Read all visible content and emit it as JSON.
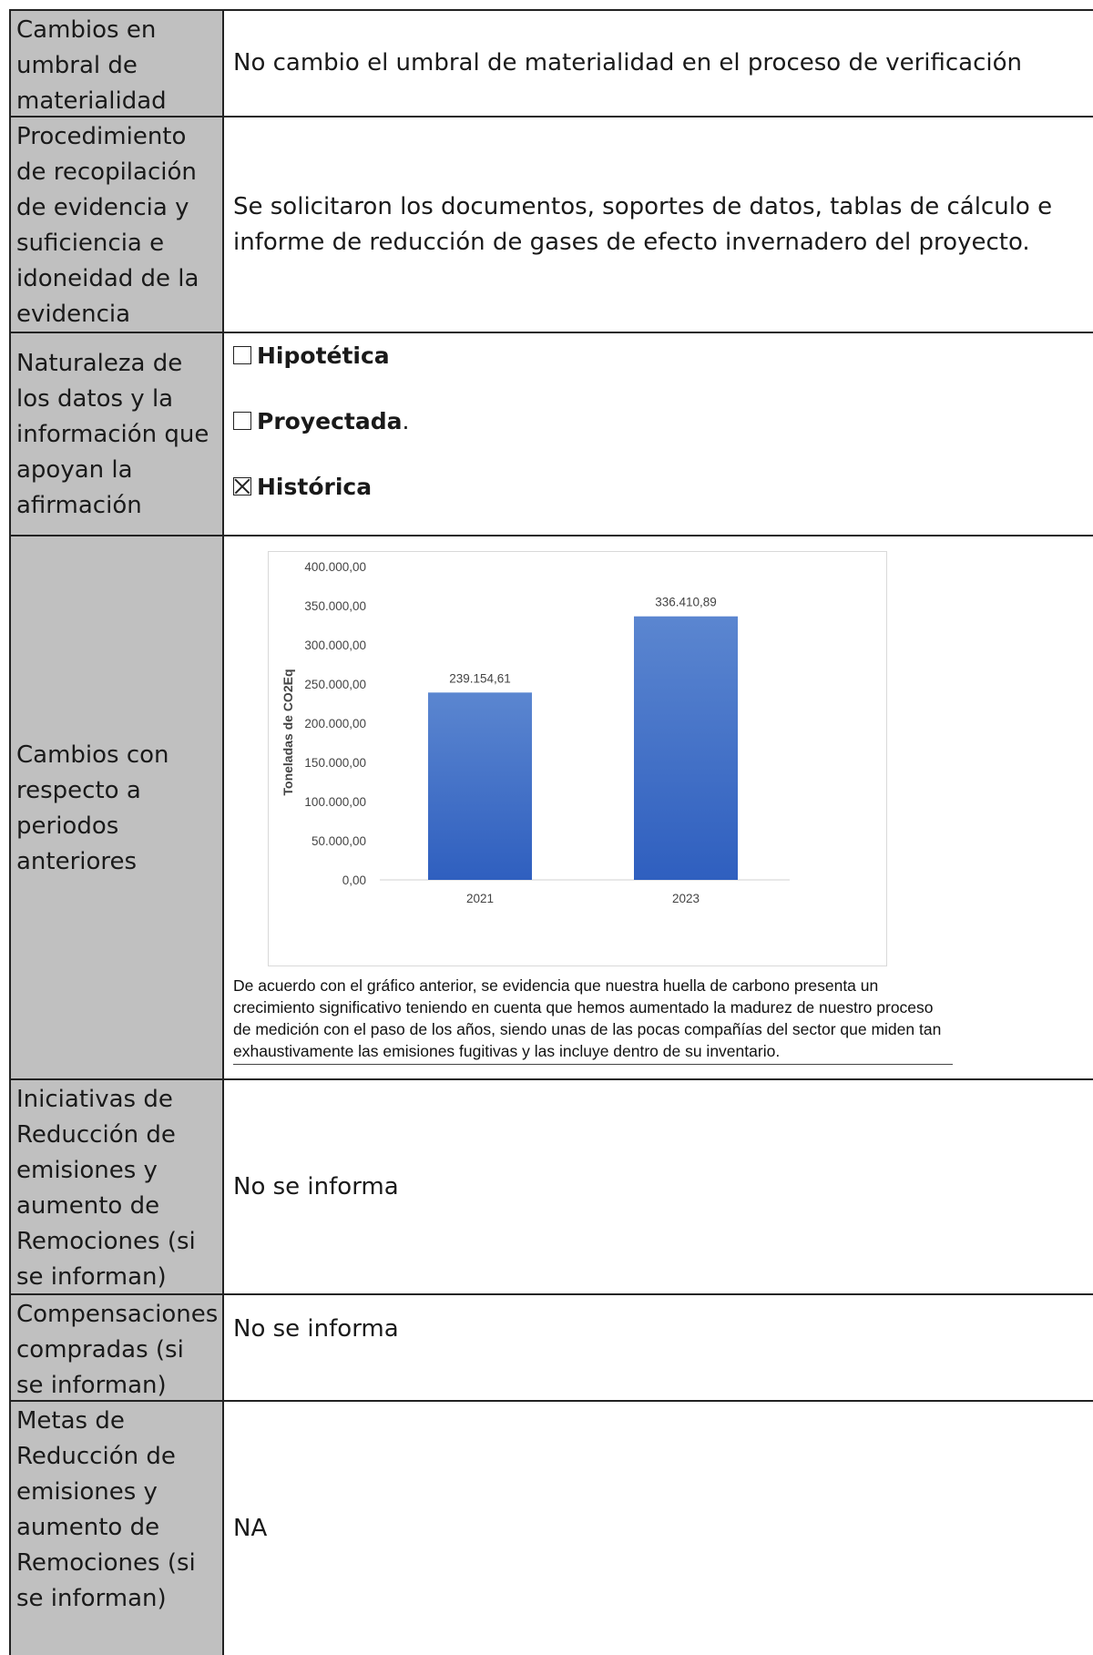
{
  "rows": [
    {
      "label": "Cambios en umbral de materialidad",
      "value": "No cambio el umbral de materialidad en el proceso de verificación"
    },
    {
      "label": "Procedimiento de recopilación de evidencia y suficiencia e idoneidad de la evidencia recopilada",
      "value": "Se solicitaron los documentos, soportes de datos, tablas de cálculo e informe de reducción de gases de efecto invernadero del proyecto."
    },
    {
      "label": "Naturaleza de los datos y la información que apoyan la afirmación",
      "options": [
        {
          "label": "Hipotética",
          "checked": false,
          "suffix": ""
        },
        {
          "label": "Proyectada",
          "checked": false,
          "suffix": "."
        },
        {
          "label": "Histórica",
          "checked": true,
          "suffix": ""
        }
      ]
    },
    {
      "label": "Cambios con respecto a periodos anteriores",
      "caption": "De acuerdo con el gráfico anterior, se evidencia que nuestra huella de carbono presenta un crecimiento significativo teniendo en cuenta que hemos aumentado la madurez de nuestro proceso de medición con el paso de los años, siendo unas de las pocas compañías del sector que miden tan exhaustivamente las emisiones fugitivas y las incluye dentro de su inventario."
    },
    {
      "label": "Iniciativas de Reducción de emisiones y aumento de Remociones (si se informan)",
      "value": "No se informa"
    },
    {
      "label": "Compensaciones compradas (si se informan)",
      "value": "No se informa"
    },
    {
      "label": "Metas de Reducción de emisiones y aumento de Remociones (si se informan)",
      "value": "NA"
    }
  ],
  "chart_data": {
    "type": "bar",
    "categories": [
      "2021",
      "2023"
    ],
    "values": [
      239154.61,
      336410.89
    ],
    "value_labels": [
      "239.154,61",
      "336.410,89"
    ],
    "ylabel": "Toneladas de CO2Eq",
    "ylim": [
      0,
      400000
    ],
    "yticks": [
      "0,00",
      "50.000,00",
      "100.000,00",
      "150.000,00",
      "200.000,00",
      "250.000,00",
      "300.000,00",
      "350.000,00",
      "400.000,00"
    ],
    "bar_color_top": "#5b86d0",
    "bar_color_bottom": "#2f5fbf",
    "grid": false,
    "legend": "none"
  }
}
